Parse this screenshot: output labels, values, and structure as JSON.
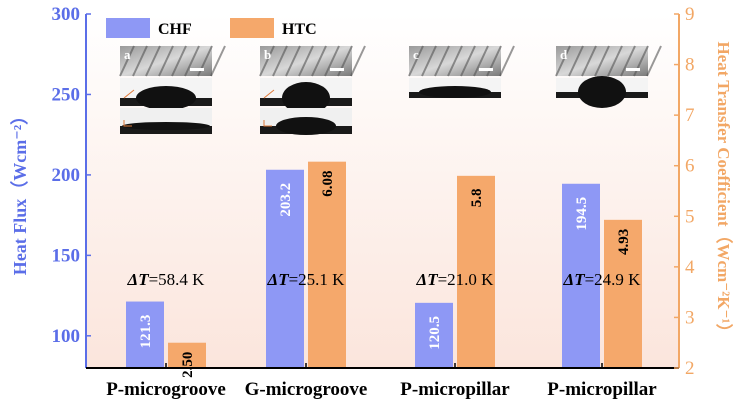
{
  "chart_data": {
    "type": "bar",
    "categories": [
      "P-microgroove",
      "G-microgroove",
      "P-micropillar",
      "P-micropillar"
    ],
    "series": [
      {
        "name": "CHF",
        "axis": "left",
        "color": "#8e98f5",
        "values": [
          121.3,
          203.2,
          120.5,
          194.5
        ]
      },
      {
        "name": "HTC",
        "axis": "right",
        "color": "#f5a86b",
        "values": [
          2.5,
          6.08,
          5.8,
          4.93
        ]
      }
    ],
    "bar_labels": {
      "CHF": [
        "121.3",
        "203.2",
        "120.5",
        "194.5"
      ],
      "HTC": [
        "2.50",
        "6.08",
        "5.8",
        "4.93"
      ]
    },
    "delta_t": {
      "symbol": "ΔT",
      "values": [
        "=58.4 K",
        "=25.1 K",
        "=21.0 K",
        "=24.9 K"
      ]
    },
    "ylabel": "Heat Flux（Wcm⁻²）",
    "y2label": "Heat Transfer Coefficient（Wcm⁻²K⁻¹）",
    "ylim": [
      80,
      300
    ],
    "y2lim": [
      2,
      9
    ],
    "yticks": [
      100,
      150,
      200,
      250,
      300
    ],
    "y2ticks": [
      2,
      3,
      4,
      5,
      6,
      7,
      8,
      9
    ],
    "legend": {
      "position": "top-left",
      "entries": [
        "CHF",
        "HTC"
      ]
    },
    "insets": [
      "a",
      "b",
      "c",
      "d"
    ],
    "background_gradient": [
      "#ffffff",
      "#fbe5dc"
    ]
  }
}
